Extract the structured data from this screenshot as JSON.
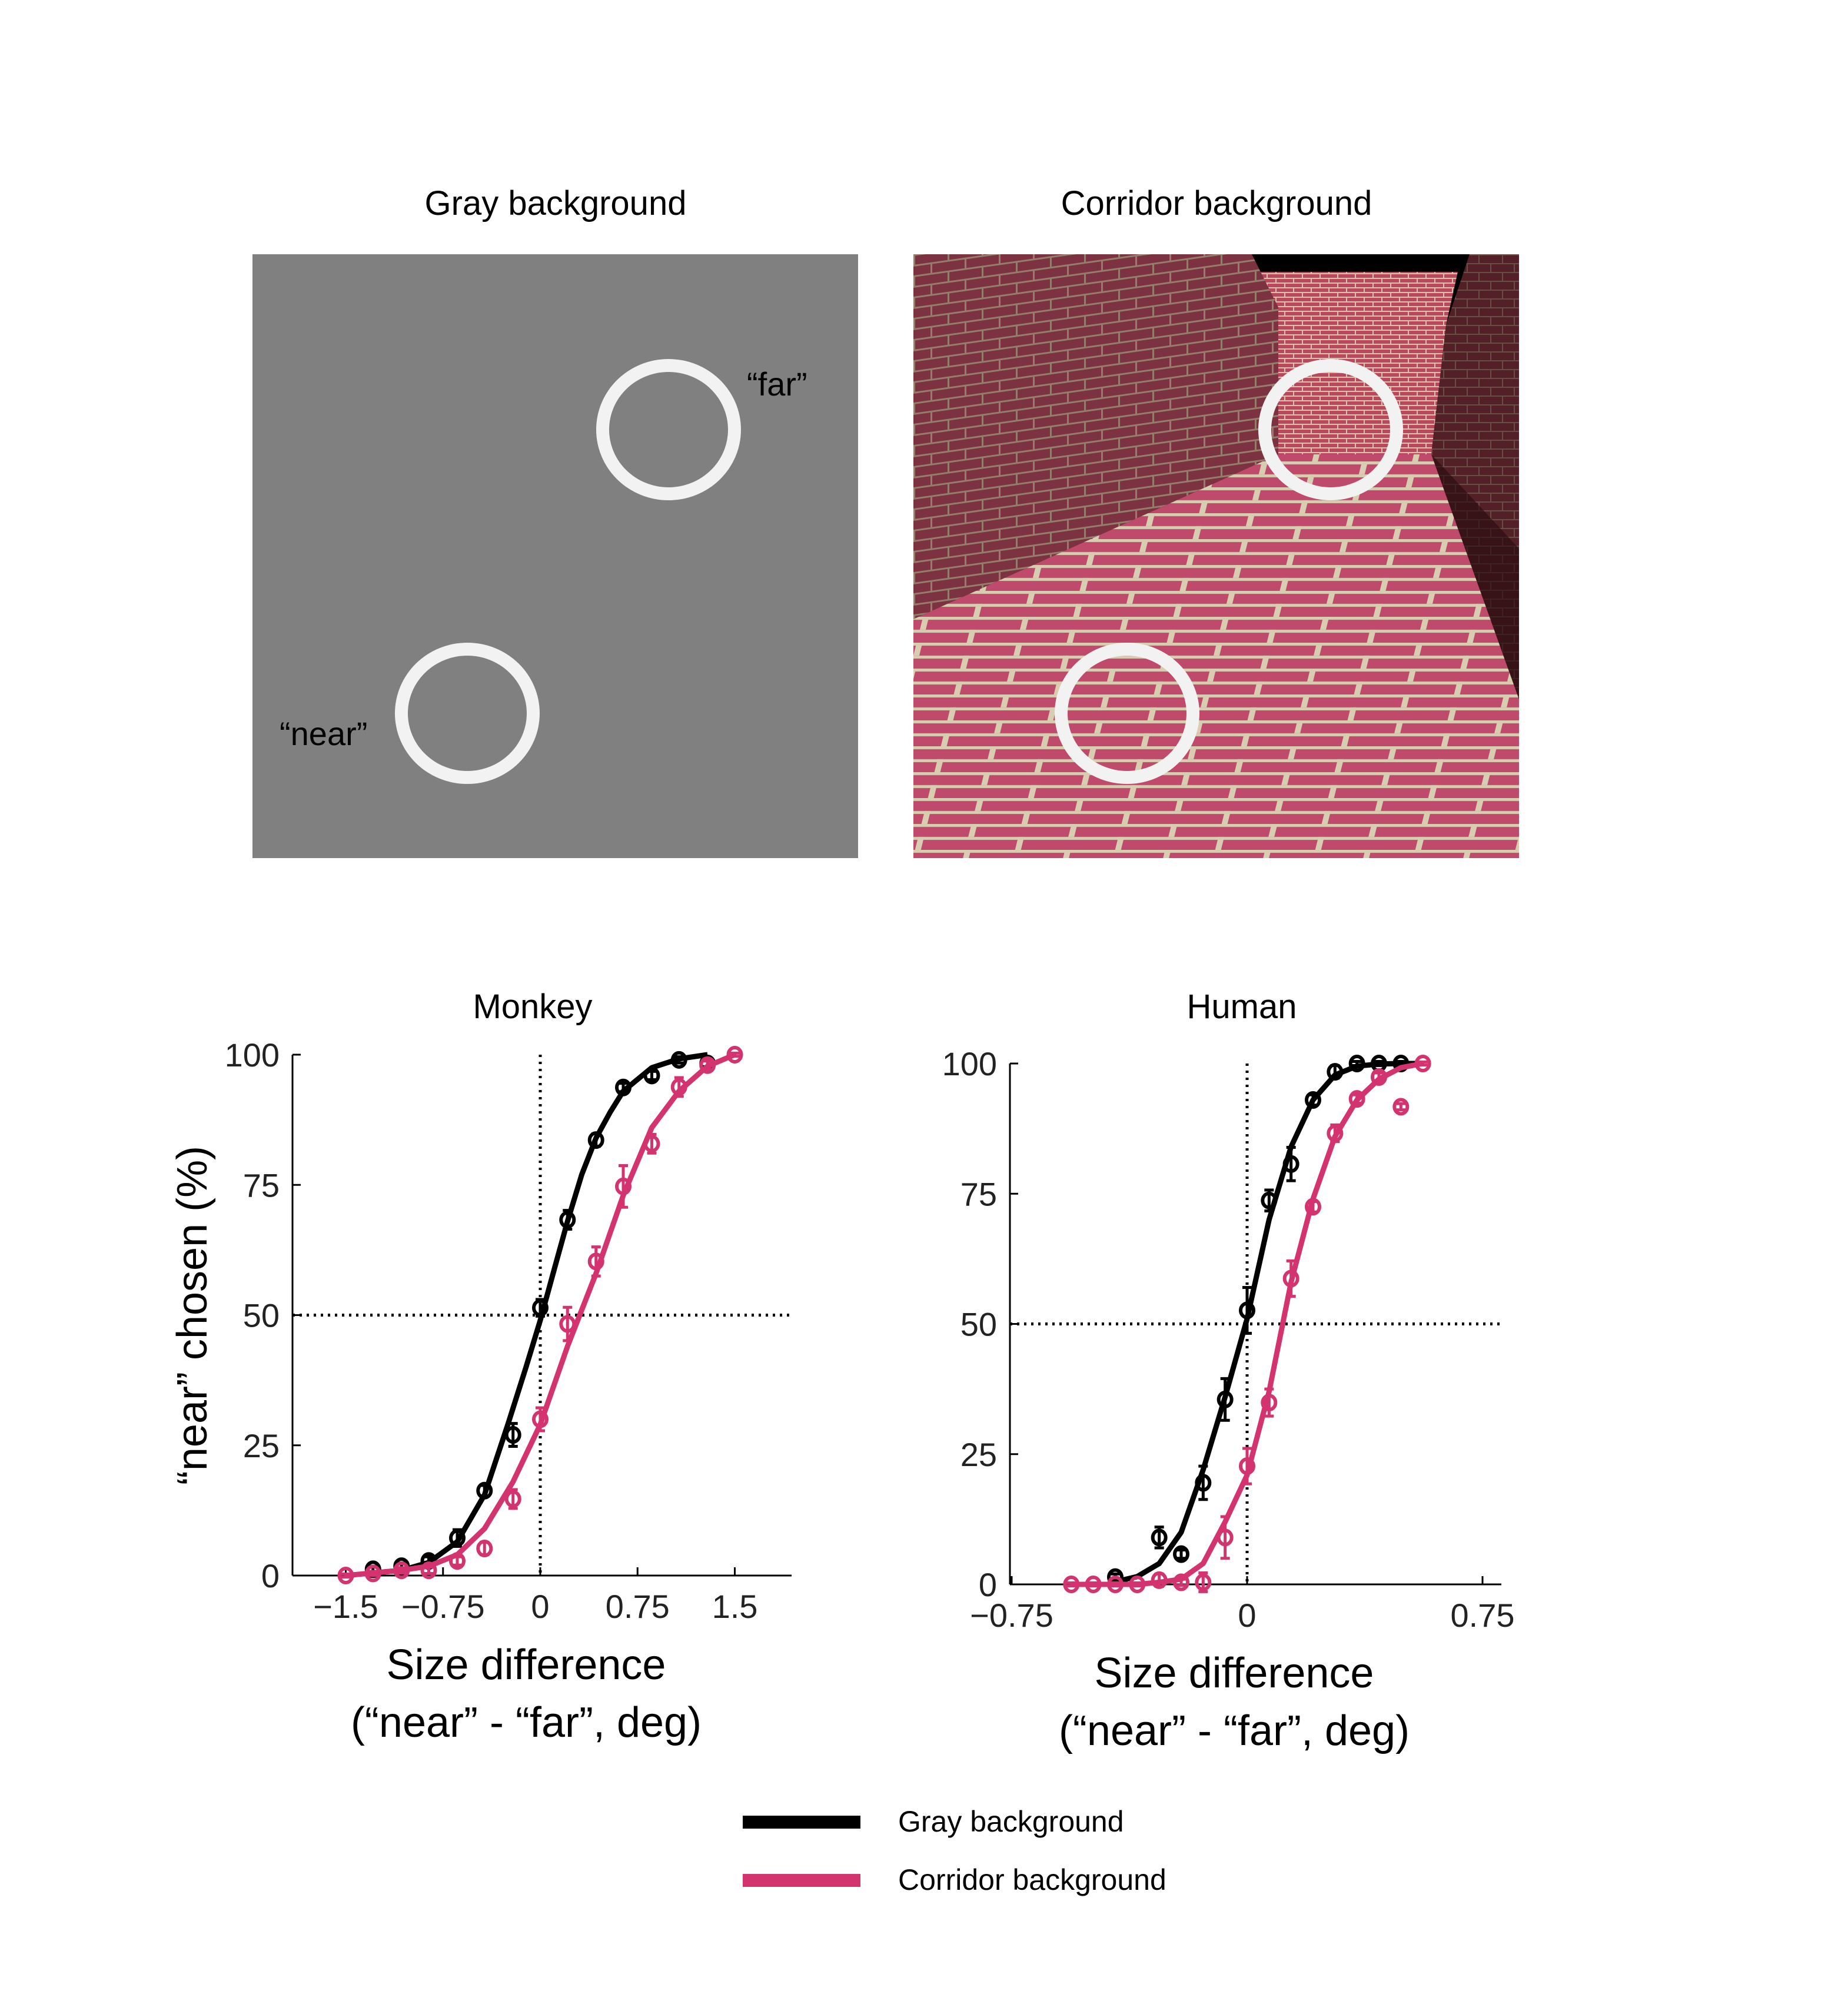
{
  "stimuli": {
    "gray": {
      "title": "Gray background",
      "near_label": "“near”",
      "far_label": "“far”",
      "background_color": "#808080",
      "ring_color": "#f2f2f2"
    },
    "corridor": {
      "title": "Corridor background",
      "ring_color": "#f2f2f2"
    }
  },
  "colors": {
    "gray_series": "#000000",
    "corridor_series": "#d3336e"
  },
  "legend": {
    "items": [
      {
        "label": "Gray background",
        "color": "#000000"
      },
      {
        "label": "Corridor background",
        "color": "#d3336e"
      }
    ]
  },
  "axes": {
    "ylabel": "“near” chosen (%)",
    "xlabel_line1": "Size difference",
    "xlabel_line2": "(“near” - “far”, deg)"
  },
  "chart_data": [
    {
      "type": "line",
      "title": "Monkey",
      "xlabel": "Size difference (“near” - “far”, deg)",
      "ylabel": "“near” chosen (%)",
      "xlim": [
        -1.75,
        1.9
      ],
      "ylim": [
        0,
        100
      ],
      "xticks": [
        -1.5,
        -0.75,
        0,
        0.75,
        1.5
      ],
      "xtick_labels": [
        "−1.5",
        "−0.75",
        "0",
        "0.75",
        "1.5"
      ],
      "yticks": [
        0,
        25,
        50,
        75,
        100
      ],
      "ytick_labels": [
        "0",
        "25",
        "50",
        "75",
        "100"
      ],
      "reference_lines": {
        "x": 0,
        "y": 50,
        "style": "dotted"
      },
      "grid": false,
      "legend_position": "below figure",
      "series": [
        {
          "name": "Gray background",
          "color": "#000000",
          "marker": "open-circle",
          "x": [
            -1.29,
            -1.07,
            -0.86,
            -0.64,
            -0.43,
            -0.21,
            0.0,
            0.21,
            0.43,
            0.64,
            0.86,
            1.07,
            1.29
          ],
          "y": [
            1.2,
            1.8,
            2.8,
            7.2,
            16.3,
            27.0,
            51.4,
            68.3,
            83.6,
            93.7,
            96.0,
            99.0,
            98.3
          ],
          "err": [
            0.6,
            0.6,
            0.8,
            1.6,
            1.0,
            2.2,
            1.6,
            1.8,
            1.2,
            0.8,
            0.8,
            0.6,
            0.6
          ],
          "fit_x": [
            -1.29,
            -1.07,
            -0.86,
            -0.64,
            -0.43,
            -0.25,
            -0.11,
            0.0,
            0.11,
            0.21,
            0.32,
            0.43,
            0.54,
            0.64,
            0.86,
            1.07,
            1.29
          ],
          "fit_y": [
            0.5,
            1.0,
            2.5,
            6.5,
            15.5,
            29.0,
            40.0,
            49.0,
            59.0,
            68.0,
            77.0,
            84.0,
            89.0,
            93.0,
            97.5,
            99.2,
            100.0
          ]
        },
        {
          "name": "Corridor background",
          "color": "#d3336e",
          "marker": "open-circle",
          "x": [
            -1.5,
            -1.29,
            -1.07,
            -0.86,
            -0.64,
            -0.43,
            -0.21,
            0.0,
            0.21,
            0.43,
            0.64,
            0.86,
            1.07,
            1.29,
            1.5
          ],
          "y": [
            0.0,
            0.4,
            1.0,
            1.0,
            2.8,
            5.2,
            14.7,
            30.0,
            48.3,
            60.3,
            74.7,
            82.9,
            93.8,
            98.0,
            100.0
          ],
          "err": [
            0.3,
            0.4,
            0.5,
            0.6,
            0.8,
            1.2,
            1.8,
            2.2,
            3.2,
            2.8,
            4.0,
            1.8,
            1.8,
            0.8,
            0.3
          ],
          "fit_x": [
            -1.5,
            -1.29,
            -1.07,
            -0.86,
            -0.64,
            -0.43,
            -0.21,
            0.0,
            0.21,
            0.43,
            0.64,
            0.86,
            1.07,
            1.29,
            1.5
          ],
          "fit_y": [
            0.0,
            0.5,
            1.0,
            1.8,
            4.0,
            9.0,
            18.0,
            29.0,
            44.0,
            58.0,
            73.0,
            86.0,
            93.0,
            97.8,
            100.0
          ]
        }
      ]
    },
    {
      "type": "line",
      "title": "Human",
      "xlabel": "Size difference (“near” - “far”, deg)",
      "ylabel": "",
      "xlim": [
        -0.8,
        0.8
      ],
      "ylim": [
        0,
        100
      ],
      "xticks": [
        -0.75,
        0,
        0.75
      ],
      "xtick_labels": [
        "−0.75",
        "0",
        "0.75"
      ],
      "yticks": [
        0,
        25,
        50,
        75,
        100
      ],
      "ytick_labels": [
        "0",
        "25",
        "50",
        "75",
        "100"
      ],
      "reference_lines": {
        "x": 0,
        "y": 50,
        "style": "dotted"
      },
      "grid": false,
      "legend_position": "below figure",
      "series": [
        {
          "name": "Gray background",
          "color": "#000000",
          "marker": "open-circle",
          "x": [
            -0.42,
            -0.28,
            -0.21,
            -0.14,
            -0.07,
            0.0,
            0.07,
            0.14,
            0.21,
            0.28,
            0.35,
            0.42,
            0.49
          ],
          "y": [
            1.4,
            9.0,
            5.8,
            19.5,
            35.5,
            52.6,
            73.7,
            80.7,
            93.0,
            98.4,
            100.0,
            100.0,
            100.0
          ],
          "err": [
            0.6,
            2.0,
            0.8,
            3.2,
            4.0,
            4.4,
            2.0,
            3.2,
            1.0,
            1.2,
            0.4,
            0.4,
            0.4
          ],
          "fit_x": [
            -0.42,
            -0.35,
            -0.28,
            -0.21,
            -0.14,
            -0.07,
            0.0,
            0.07,
            0.14,
            0.21,
            0.28,
            0.35,
            0.42,
            0.49,
            0.56
          ],
          "fit_y": [
            0.5,
            1.5,
            4.0,
            10.0,
            22.0,
            36.0,
            51.0,
            70.0,
            84.0,
            93.0,
            97.8,
            99.5,
            99.9,
            100.0,
            100.0
          ]
        },
        {
          "name": "Corridor background",
          "color": "#d3336e",
          "marker": "open-circle",
          "x": [
            -0.56,
            -0.49,
            -0.42,
            -0.35,
            -0.28,
            -0.21,
            -0.14,
            -0.07,
            0.0,
            0.07,
            0.14,
            0.21,
            0.28,
            0.35,
            0.42,
            0.49,
            0.56
          ],
          "y": [
            0.0,
            0.0,
            0.0,
            0.0,
            0.8,
            0.4,
            0.4,
            9.0,
            22.7,
            34.9,
            58.7,
            72.5,
            86.6,
            93.2,
            97.4,
            91.7,
            100.0
          ],
          "err": [
            0.3,
            0.3,
            0.3,
            0.3,
            1.2,
            0.6,
            1.8,
            4.0,
            3.4,
            2.6,
            3.4,
            1.0,
            1.6,
            0.8,
            0.8,
            0.6,
            0.3
          ],
          "fit_x": [
            -0.56,
            -0.49,
            -0.42,
            -0.35,
            -0.28,
            -0.21,
            -0.14,
            -0.07,
            0.0,
            0.07,
            0.14,
            0.21,
            0.28,
            0.35,
            0.42,
            0.49,
            0.56
          ],
          "fit_y": [
            0.0,
            0.0,
            0.0,
            0.0,
            0.4,
            1.0,
            4.0,
            12.0,
            21.0,
            37.0,
            58.0,
            74.0,
            86.0,
            93.0,
            97.0,
            99.2,
            100.0
          ]
        }
      ]
    }
  ]
}
